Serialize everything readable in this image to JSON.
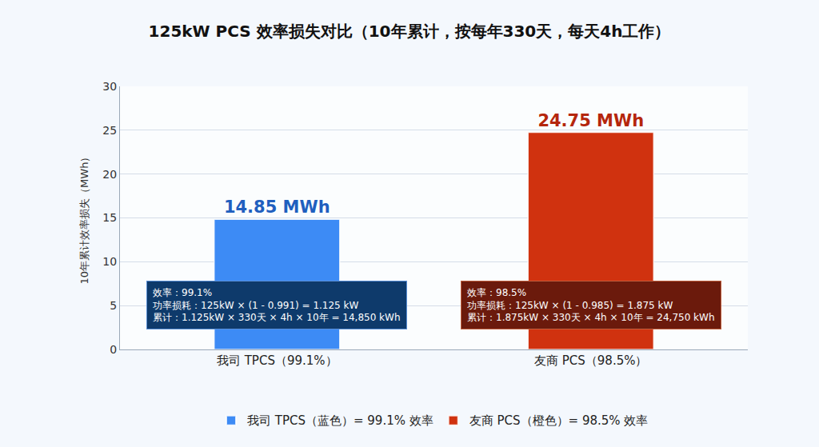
{
  "chart_data": {
    "type": "bar",
    "title": "125kW PCS 效率损失对比（10年累计，按每年330天，每天4h工作）",
    "y_label": "10年累计效率损失（MWh）",
    "categories": [
      "我司 TPCS（99.1%）",
      "友商 PCS（98.5%）"
    ],
    "series": [
      {
        "name": "我司 TPCS（蓝色）= 99.1% 效率",
        "color": "#3d8bf5",
        "values": [
          14.85,
          null
        ],
        "value_labels": [
          "14.85 MWh",
          null
        ]
      },
      {
        "name": "友商 PCS（橙色）= 98.5% 效率",
        "color": "#d0320f",
        "values": [
          null,
          24.75
        ],
        "value_labels": [
          null,
          "24.75 MWh"
        ]
      }
    ],
    "ylim": [
      0,
      30
    ],
    "yticks": [
      0,
      5,
      10,
      15,
      20,
      25,
      30
    ],
    "grid": true,
    "data_labels": true,
    "legend": "bottom",
    "annotations": [
      {
        "category": "我司 TPCS（99.1%）",
        "text": [
          "效率：99.1%",
          "功率损耗：125kW × (1 - 0.991) = 1.125 kW",
          "累计：1.125kW × 330天 × 4h × 10年 = 14,850 kWh"
        ]
      },
      {
        "category": "友商 PCS（98.5%）",
        "text": [
          "效率：98.5%",
          "功率损耗：125kW × (1 - 0.985) = 1.875 kW",
          "累计：1.875kW × 330天 × 4h × 10年 = 24,750 kWh"
        ]
      }
    ]
  }
}
